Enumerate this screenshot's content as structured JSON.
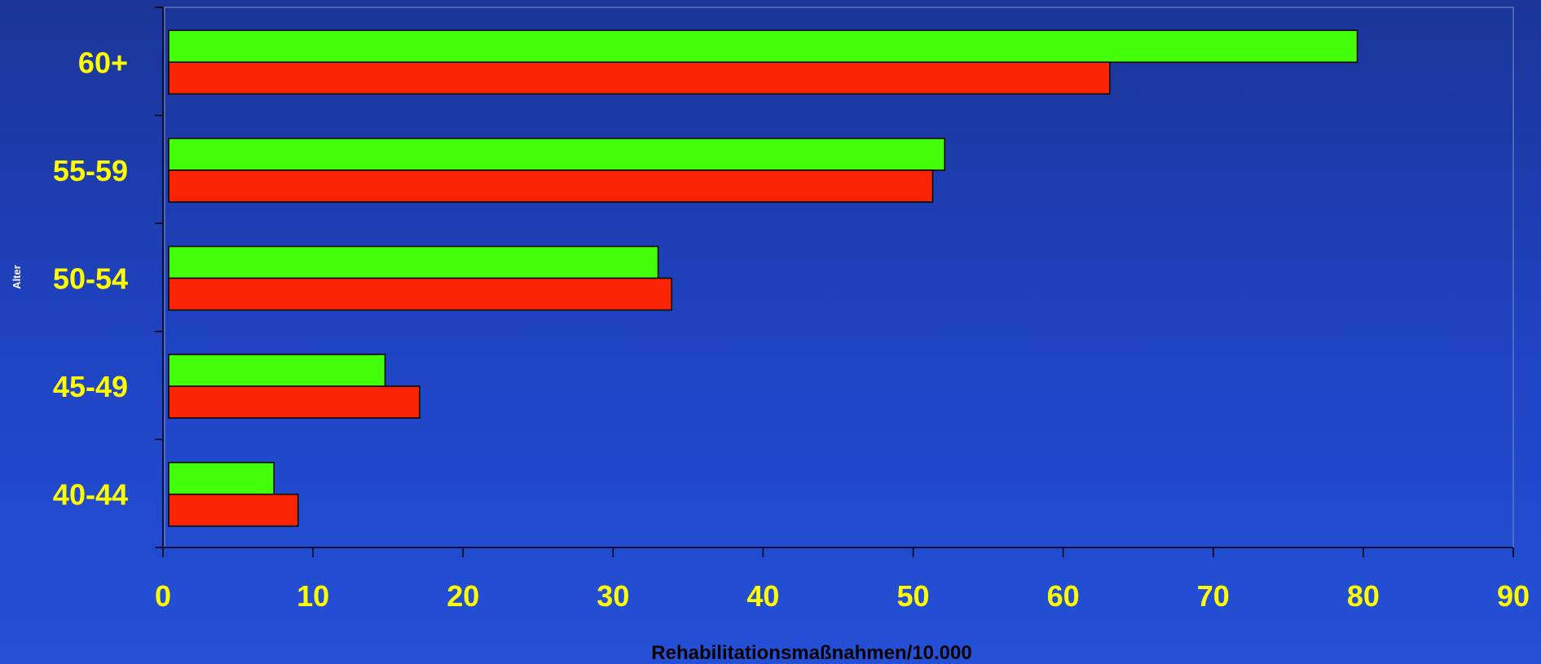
{
  "chart_data": {
    "type": "bar",
    "orientation": "horizontal",
    "categories": [
      "40-44",
      "45-49",
      "50-54",
      "55-59",
      "60+"
    ],
    "series": [
      {
        "values": [
          7.4,
          14.8,
          33.0,
          52.1,
          79.6
        ],
        "color": "#44ff0a"
      },
      {
        "values": [
          9.0,
          17.1,
          33.9,
          51.3,
          63.1
        ],
        "color": "#fa2303"
      }
    ],
    "xticks": [
      "0",
      "10",
      "20",
      "30",
      "40",
      "50",
      "60",
      "70",
      "80",
      "90"
    ],
    "xlim": [
      0,
      90
    ],
    "xlabel": "Rehabilitationsmaßnahmen/10.000",
    "ylabel": "Alter",
    "grid": false,
    "legend": "none",
    "colors": {
      "tick_label": "#ffff00",
      "axis_title": "#000000",
      "axis_line": "#000000",
      "plot_border": "#7f8fbf",
      "ylabel": "#ffffff"
    }
  }
}
